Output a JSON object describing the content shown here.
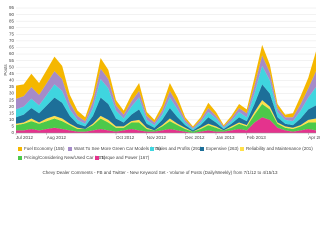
{
  "chart_data": {
    "type": "stacked_area",
    "y_label": "Posts",
    "categories": [
      "Jul 2012",
      null,
      null,
      null,
      "Aug 2012",
      null,
      null,
      null,
      null,
      null,
      null,
      null,
      null,
      "Oct 2012",
      null,
      null,
      null,
      "Nov 2012",
      null,
      null,
      null,
      null,
      "Dec 2012",
      null,
      null,
      null,
      "Jan 2013",
      null,
      null,
      null,
      "Feb 2013",
      null,
      null,
      null,
      null,
      null,
      null,
      null,
      "Apr 2013",
      null
    ],
    "series": [
      {
        "name": "Fuel Economy (155)",
        "color": "#f5b700",
        "values": [
          10,
          9,
          10,
          9,
          10,
          11,
          10,
          6,
          4,
          3,
          5,
          8,
          7,
          4,
          3,
          5,
          6,
          3,
          2,
          4,
          6,
          5,
          2,
          1,
          2,
          4,
          3,
          1,
          2,
          3,
          3,
          6,
          8,
          6,
          3,
          2,
          3,
          6,
          8,
          15
        ]
      },
      {
        "name": "Want To See More Green Car Models (175)",
        "color": "#a58bc9",
        "values": [
          8,
          8,
          9,
          8,
          9,
          10,
          9,
          5,
          3,
          2,
          5,
          8,
          7,
          4,
          3,
          4,
          5,
          3,
          2,
          3,
          5,
          4,
          2,
          1,
          2,
          3,
          2,
          1,
          2,
          3,
          3,
          6,
          8,
          6,
          3,
          2,
          3,
          5,
          7,
          12
        ]
      },
      {
        "name": "Sales and Profits (291)",
        "color": "#3fd5df",
        "values": [
          6,
          6,
          7,
          6,
          8,
          10,
          9,
          5,
          3,
          2,
          6,
          14,
          12,
          6,
          3,
          6,
          9,
          3,
          2,
          4,
          8,
          6,
          2,
          1,
          2,
          4,
          3,
          1,
          2,
          4,
          3,
          8,
          14,
          10,
          4,
          3,
          3,
          6,
          9,
          14
        ]
      },
      {
        "name": "Expensive (263)",
        "color": "#1d6f99",
        "values": [
          5,
          6,
          8,
          7,
          10,
          14,
          12,
          6,
          3,
          2,
          6,
          14,
          12,
          6,
          3,
          5,
          8,
          3,
          2,
          4,
          8,
          5,
          2,
          1,
          2,
          5,
          3,
          1,
          2,
          4,
          3,
          6,
          12,
          10,
          4,
          2,
          2,
          5,
          8,
          10
        ]
      },
      {
        "name": "Reliability and Maintenance (201)",
        "color": "#ffe04a",
        "values": [
          1,
          1,
          2,
          1,
          2,
          2,
          2,
          1,
          1,
          0,
          1,
          2,
          2,
          1,
          1,
          1,
          2,
          1,
          0,
          1,
          2,
          1,
          1,
          0,
          1,
          1,
          1,
          0,
          1,
          1,
          1,
          2,
          3,
          2,
          1,
          1,
          1,
          1,
          2,
          3
        ]
      },
      {
        "name": "Pricing/Considering New/Used Car (201)",
        "color": "#4cc94a",
        "values": [
          4,
          5,
          6,
          5,
          6,
          7,
          6,
          4,
          2,
          2,
          4,
          8,
          6,
          3,
          2,
          5,
          6,
          2,
          1,
          3,
          6,
          4,
          2,
          1,
          2,
          4,
          3,
          1,
          2,
          4,
          3,
          6,
          10,
          8,
          3,
          2,
          2,
          3,
          5,
          6
        ]
      },
      {
        "name": "Torque and Power (167)",
        "color": "#e4338d",
        "values": [
          2,
          2,
          3,
          2,
          3,
          4,
          3,
          2,
          1,
          1,
          2,
          3,
          2,
          1,
          2,
          3,
          2,
          1,
          1,
          2,
          3,
          2,
          1,
          0,
          1,
          2,
          1,
          1,
          2,
          3,
          2,
          8,
          12,
          10,
          4,
          2,
          1,
          2,
          3,
          2
        ]
      }
    ],
    "ylim": [
      0,
      95
    ],
    "yticks": [
      0,
      5,
      10,
      15,
      20,
      25,
      30,
      35,
      40,
      45,
      50,
      55,
      60,
      65,
      70,
      75,
      80,
      85,
      90,
      95
    ],
    "grid": true,
    "footer": "Chevy Dealer Comments - FB and Twitter - New Keyword Set - Volume of Posts (Daily/Weekly) from 7/1/12 to 4/15/13"
  }
}
